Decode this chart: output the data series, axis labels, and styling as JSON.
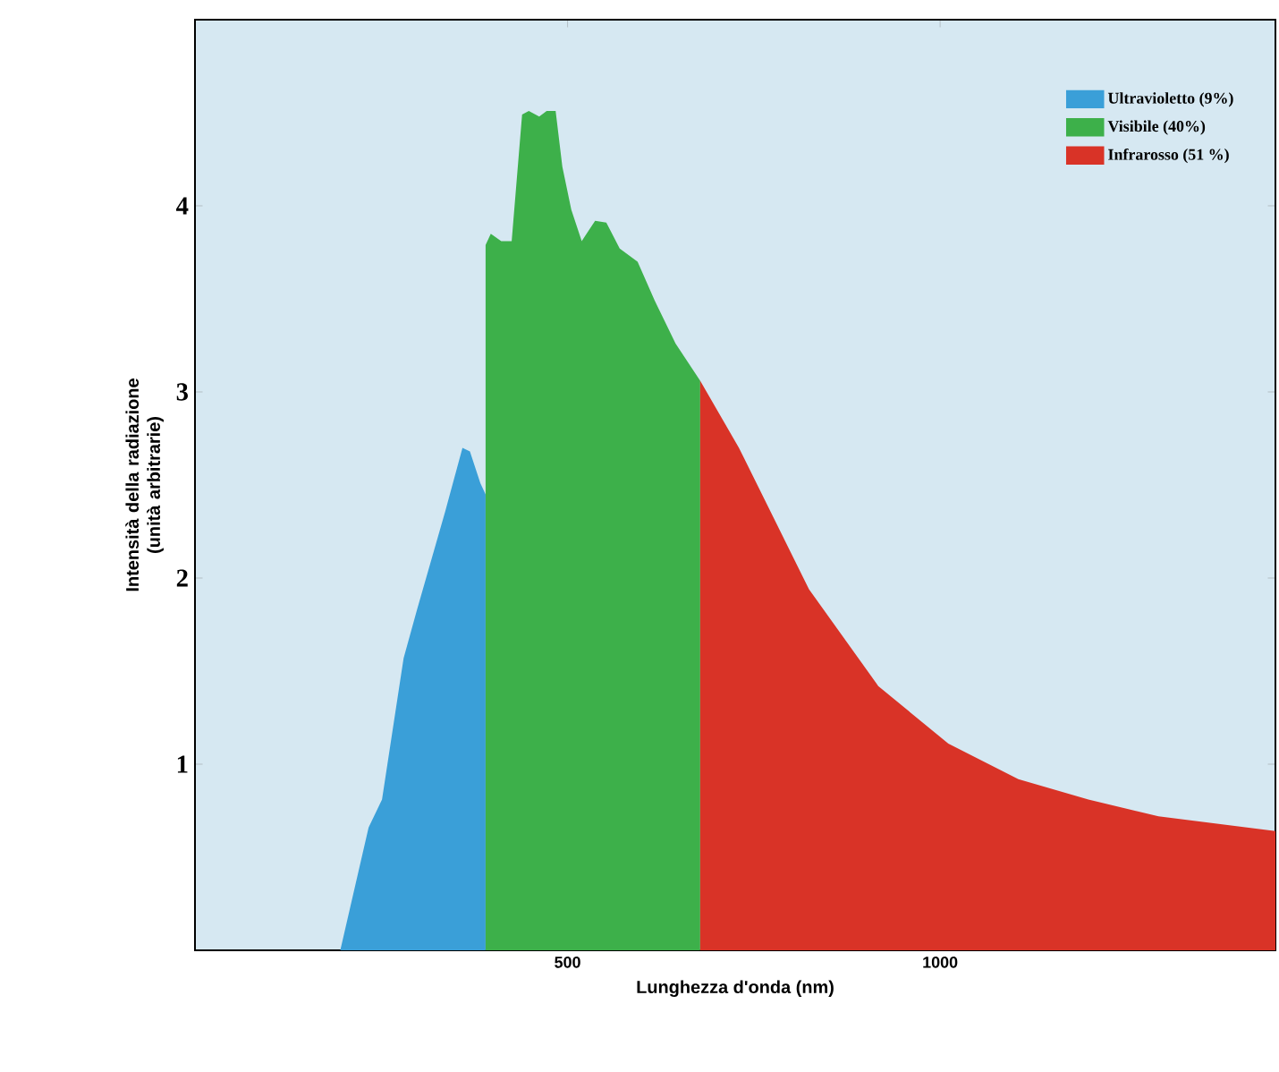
{
  "chart_data": {
    "type": "area",
    "xlabel": "Lunghezza d'onda (nm)",
    "ylabel": "Intensità della radiazione (unità arbitrarie)",
    "xlim": [
      0,
      1450
    ],
    "ylim": [
      0,
      5
    ],
    "xticks": [
      500,
      1000
    ],
    "yticks": [
      1,
      2,
      3,
      4
    ],
    "legend": "top right",
    "series": [
      {
        "name": "Ultravioletto (9%)",
        "color": "#3a9fd8",
        "x": [
          195,
          233,
          251,
          280,
          298,
          336,
          359,
          369,
          383,
          390
        ],
        "values": [
          0,
          0.66,
          0.81,
          1.57,
          1.83,
          2.36,
          2.7,
          2.68,
          2.51,
          2.45
        ]
      },
      {
        "name": "Visibile (40%)",
        "color": "#3db04a",
        "x": [
          390,
          397,
          411,
          425,
          439,
          448,
          462,
          472,
          484,
          493,
          505,
          519,
          537,
          552,
          570,
          594,
          617,
          645,
          678
        ],
        "values": [
          3.79,
          3.85,
          3.81,
          3.81,
          4.49,
          4.51,
          4.48,
          4.51,
          4.51,
          4.21,
          3.98,
          3.81,
          3.92,
          3.91,
          3.77,
          3.7,
          3.49,
          3.26,
          3.06
        ]
      },
      {
        "name": "Infrarosso (51 %)",
        "color": "#d93327",
        "x": [
          678,
          730,
          824,
          917,
          1011,
          1105,
          1199,
          1293,
          1450
        ],
        "values": [
          3.06,
          2.7,
          1.94,
          1.42,
          1.11,
          0.92,
          0.81,
          0.72,
          0.64
        ]
      }
    ]
  }
}
